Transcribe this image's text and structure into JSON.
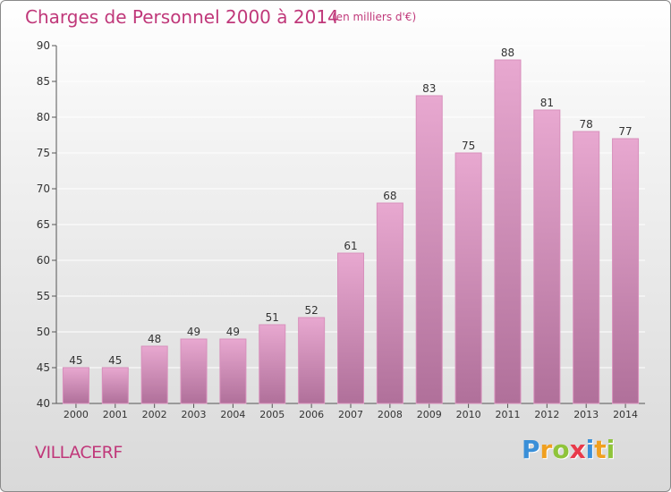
{
  "title": "Charges de Personnel 2000 à 2014",
  "subtitle": "(en milliers d'€)",
  "commune": "VILLACERF",
  "logo": {
    "text": "Proxiti",
    "letters": [
      {
        "ch": "P",
        "color": "#3a8fd8"
      },
      {
        "ch": "r",
        "color": "#f0a020"
      },
      {
        "ch": "o",
        "color": "#8fc43a"
      },
      {
        "ch": "x",
        "color": "#e83a4a"
      },
      {
        "ch": "i",
        "color": "#3a8fd8"
      },
      {
        "ch": "t",
        "color": "#f0a020"
      },
      {
        "ch": "i",
        "color": "#8fc43a"
      }
    ]
  },
  "colors": {
    "bar_top": "#e8a8d0",
    "bar_bottom": "#b0709a",
    "bar_stroke": "#d890bc",
    "grid": "#ffffff",
    "axis": "#555555"
  },
  "chart_data": {
    "type": "bar",
    "title": "Charges de Personnel 2000 à 2014",
    "subtitle": "(en milliers d'€)",
    "xlabel": "",
    "ylabel": "",
    "categories": [
      "2000",
      "2001",
      "2002",
      "2003",
      "2004",
      "2005",
      "2006",
      "2007",
      "2008",
      "2009",
      "2010",
      "2011",
      "2012",
      "2013",
      "2014"
    ],
    "values": [
      45,
      45,
      48,
      49,
      49,
      51,
      52,
      61,
      68,
      83,
      75,
      88,
      81,
      78,
      77
    ],
    "ylim": [
      40,
      90
    ],
    "yticks": [
      40,
      45,
      50,
      55,
      60,
      65,
      70,
      75,
      80,
      85,
      90
    ],
    "grid": true,
    "data_labels": true
  }
}
